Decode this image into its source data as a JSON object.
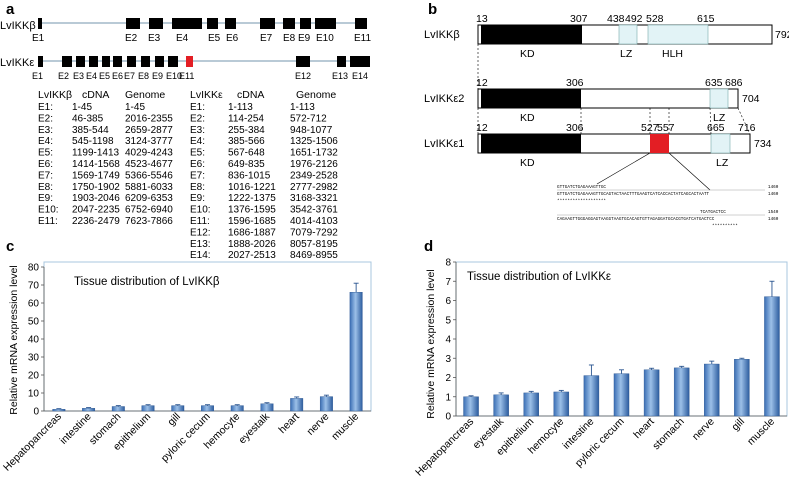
{
  "panels": {
    "a": {
      "letter": "a",
      "gene_b_label": "LvIKKβ",
      "gene_e_label": "LvIKKε",
      "b_exon_labels": [
        "E1",
        "E2",
        "E3",
        "E4",
        "E5",
        "E6",
        "E7",
        "E8",
        "E9",
        "E10",
        "E11"
      ],
      "e_exon_labels": [
        "E1",
        "E2",
        "E3",
        "E4",
        "E5",
        "E6",
        "E7",
        "E8",
        "E9",
        "E10",
        "E11",
        "E12",
        "E13",
        "E14"
      ],
      "table_b": {
        "header": "LvIKKβ",
        "col1": "cDNA",
        "col2": "Genome",
        "rows": [
          [
            "E1:",
            "1-45",
            "1-45"
          ],
          [
            "E2:",
            "46-385",
            "2016-2355"
          ],
          [
            "E3:",
            "385-544",
            "2659-2877"
          ],
          [
            "E4:",
            "545-1198",
            "3124-3777"
          ],
          [
            "E5:",
            "1199-1413",
            "4029-4243"
          ],
          [
            "E6:",
            "1414-1568",
            "4523-4677"
          ],
          [
            "E7:",
            "1569-1749",
            "5366-5546"
          ],
          [
            "E8:",
            "1750-1902",
            "5881-6033"
          ],
          [
            "E9:",
            "1903-2046",
            "6209-6353"
          ],
          [
            "E10:",
            "2047-2235",
            "6752-6940"
          ],
          [
            "E11:",
            "2236-2479",
            "7623-7866"
          ]
        ]
      },
      "table_e": {
        "header": "LvIKKε",
        "col1": "cDNA",
        "col2": "Genome",
        "rows": [
          [
            "E1:",
            "1-113",
            "1-113"
          ],
          [
            "E2:",
            "114-254",
            "572-712"
          ],
          [
            "E3:",
            "255-384",
            "948-1077"
          ],
          [
            "E4:",
            "385-566",
            "1325-1506"
          ],
          [
            "E5:",
            "567-648",
            "1651-1732"
          ],
          [
            "E6:",
            "649-835",
            "1976-2126"
          ],
          [
            "E7:",
            "836-1015",
            "2349-2528"
          ],
          [
            "E8:",
            "1016-1221",
            "2777-2982"
          ],
          [
            "E9:",
            "1222-1375",
            "3168-3321"
          ],
          [
            "E10:",
            "1376-1595",
            "3542-3761"
          ],
          [
            "E11:",
            "1596-1685",
            "4014-4103"
          ],
          [
            "E12:",
            "1686-1887",
            "7079-7292"
          ],
          [
            "E13:",
            "1888-2026",
            "8057-8195"
          ],
          [
            "E14:",
            "2027-2513",
            "8469-8955"
          ]
        ]
      }
    },
    "b": {
      "letter": "b",
      "proteins": [
        {
          "name": "LvIKKβ",
          "length": "792",
          "positions": [
            "13",
            "307",
            "438",
            "492",
            "528",
            "615"
          ],
          "domains": [
            "KD",
            "LZ",
            "HLH"
          ]
        },
        {
          "name": "LvIKKε2",
          "length": "704",
          "positions": [
            "12",
            "306",
            "635",
            "686"
          ],
          "domains": [
            "KD",
            "LZ"
          ]
        },
        {
          "name": "LvIKKε1",
          "length": "734",
          "positions": [
            "12",
            "306",
            "527",
            "557",
            "665",
            "716"
          ],
          "domains": [
            "KD",
            "LZ"
          ]
        }
      ],
      "alignment": [
        {
          "seq": "GTTGATCTGAGAAAGTTGC",
          "num": "1460"
        },
        {
          "seq": "GTTGATCTGAGAAAGTTGCAGTACTAACTTTGAAGTCATCACCACTATCAGCACTAATT",
          "num": "1460"
        },
        {
          "seq": "*******************",
          "num": ""
        },
        {
          "seq": "TCATGACTCC",
          "num": "1540"
        },
        {
          "seq": "CAGAAGTTGGGAGGAGTAAGGTAAGTGCACAGTGTTAGAGGATGCACGTGATCATGACTCC",
          "num": "1460"
        },
        {
          "seq": "**********",
          "num": ""
        }
      ]
    },
    "c": {
      "letter": "c",
      "title": "Tissue distribution of LvIKKβ",
      "ylabel": "Relative mRNA expression level",
      "yticks": [
        "0",
        "10",
        "20",
        "30",
        "40",
        "50",
        "60",
        "70",
        "80"
      ]
    },
    "d": {
      "letter": "d",
      "title": "Tissue distribution of LvIKKε",
      "ylabel": "Relative mRNA expression level",
      "yticks": [
        "0",
        "1",
        "2",
        "3",
        "4",
        "5",
        "6",
        "7",
        "8"
      ]
    }
  },
  "colors": {
    "bar_top": "#8fb6e2",
    "bar_bottom": "#2f63a8",
    "exon": "#000000",
    "red_exon": "#e31e24",
    "intron": "#b9cad6",
    "lz_fill": "#e2f3f6",
    "chart_border": "#a9c7df"
  },
  "chart_data": [
    {
      "type": "bar",
      "title": "Tissue distribution of LvIKKβ",
      "xlabel": "",
      "ylabel": "Relative mRNA expression level",
      "categories": [
        "Hepatopancreas",
        "intestine",
        "stomach",
        "epithelium",
        "gill",
        "pyloric cecum",
        "hemocyte",
        "eyestalk",
        "heart",
        "nerve",
        "muscle"
      ],
      "values": [
        1,
        1.5,
        2.5,
        3,
        3,
        3,
        3,
        4,
        7,
        8,
        66
      ],
      "errors": [
        0.3,
        0.4,
        0.5,
        0.5,
        0.5,
        0.5,
        0.5,
        0.6,
        0.8,
        0.8,
        5
      ],
      "ylim": [
        0,
        80
      ],
      "grid": false
    },
    {
      "type": "bar",
      "title": "Tissue distribution of LvIKKε",
      "xlabel": "",
      "ylabel": "Relative mRNA expression level",
      "categories": [
        "Hepatopancreas",
        "eyestalk",
        "epithelium",
        "hemocyte",
        "intestine",
        "pyloric cecum",
        "heart",
        "stomach",
        "nerve",
        "gill",
        "muscle"
      ],
      "values": [
        1,
        1.1,
        1.2,
        1.25,
        2.1,
        2.2,
        2.4,
        2.5,
        2.7,
        2.95,
        6.2
      ],
      "errors": [
        0.05,
        0.1,
        0.08,
        0.08,
        0.55,
        0.2,
        0.08,
        0.08,
        0.15,
        0.05,
        0.8
      ],
      "ylim": [
        0,
        8
      ],
      "grid": false
    }
  ]
}
